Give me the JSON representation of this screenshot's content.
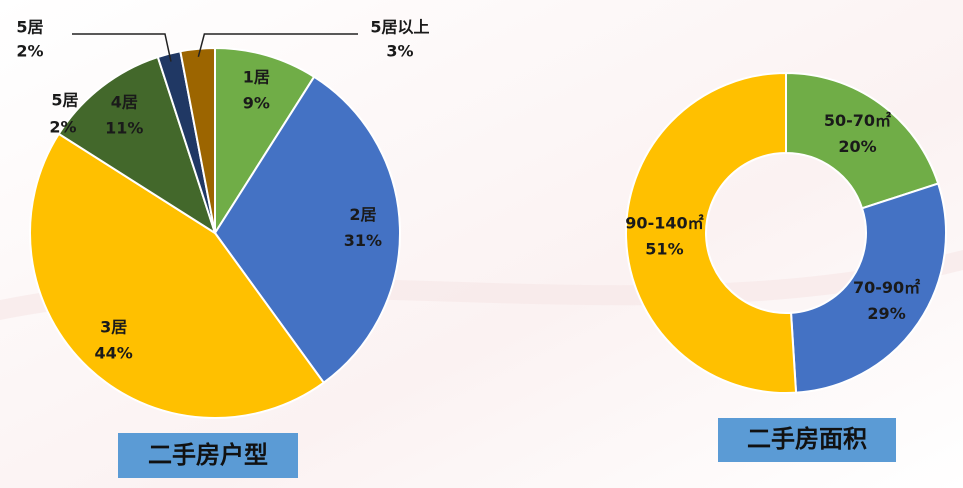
{
  "chart_data": [
    {
      "type": "pie",
      "title": "二手房户型",
      "categories": [
        "1居",
        "2居",
        "3居",
        "4居",
        "5居",
        "5居以上"
      ],
      "values": [
        9,
        31,
        44,
        11,
        2,
        3
      ],
      "value_labels": [
        "9%",
        "31%",
        "44%",
        "11%",
        "2%",
        "3%"
      ],
      "colors": [
        "#70ad47",
        "#4472c4",
        "#ffc000",
        "#43682b",
        "#203864",
        "#9c6500"
      ],
      "annotations": [
        {
          "label": "5居",
          "value_label": "2%"
        }
      ]
    },
    {
      "type": "donut",
      "title": "二手房面积",
      "categories": [
        "50-70㎡",
        "70-90㎡",
        "90-140㎡"
      ],
      "values": [
        20,
        29,
        51
      ],
      "value_labels": [
        "20%",
        "29%",
        "51%"
      ],
      "colors": [
        "#70ad47",
        "#4472c4",
        "#ffc000"
      ]
    }
  ]
}
